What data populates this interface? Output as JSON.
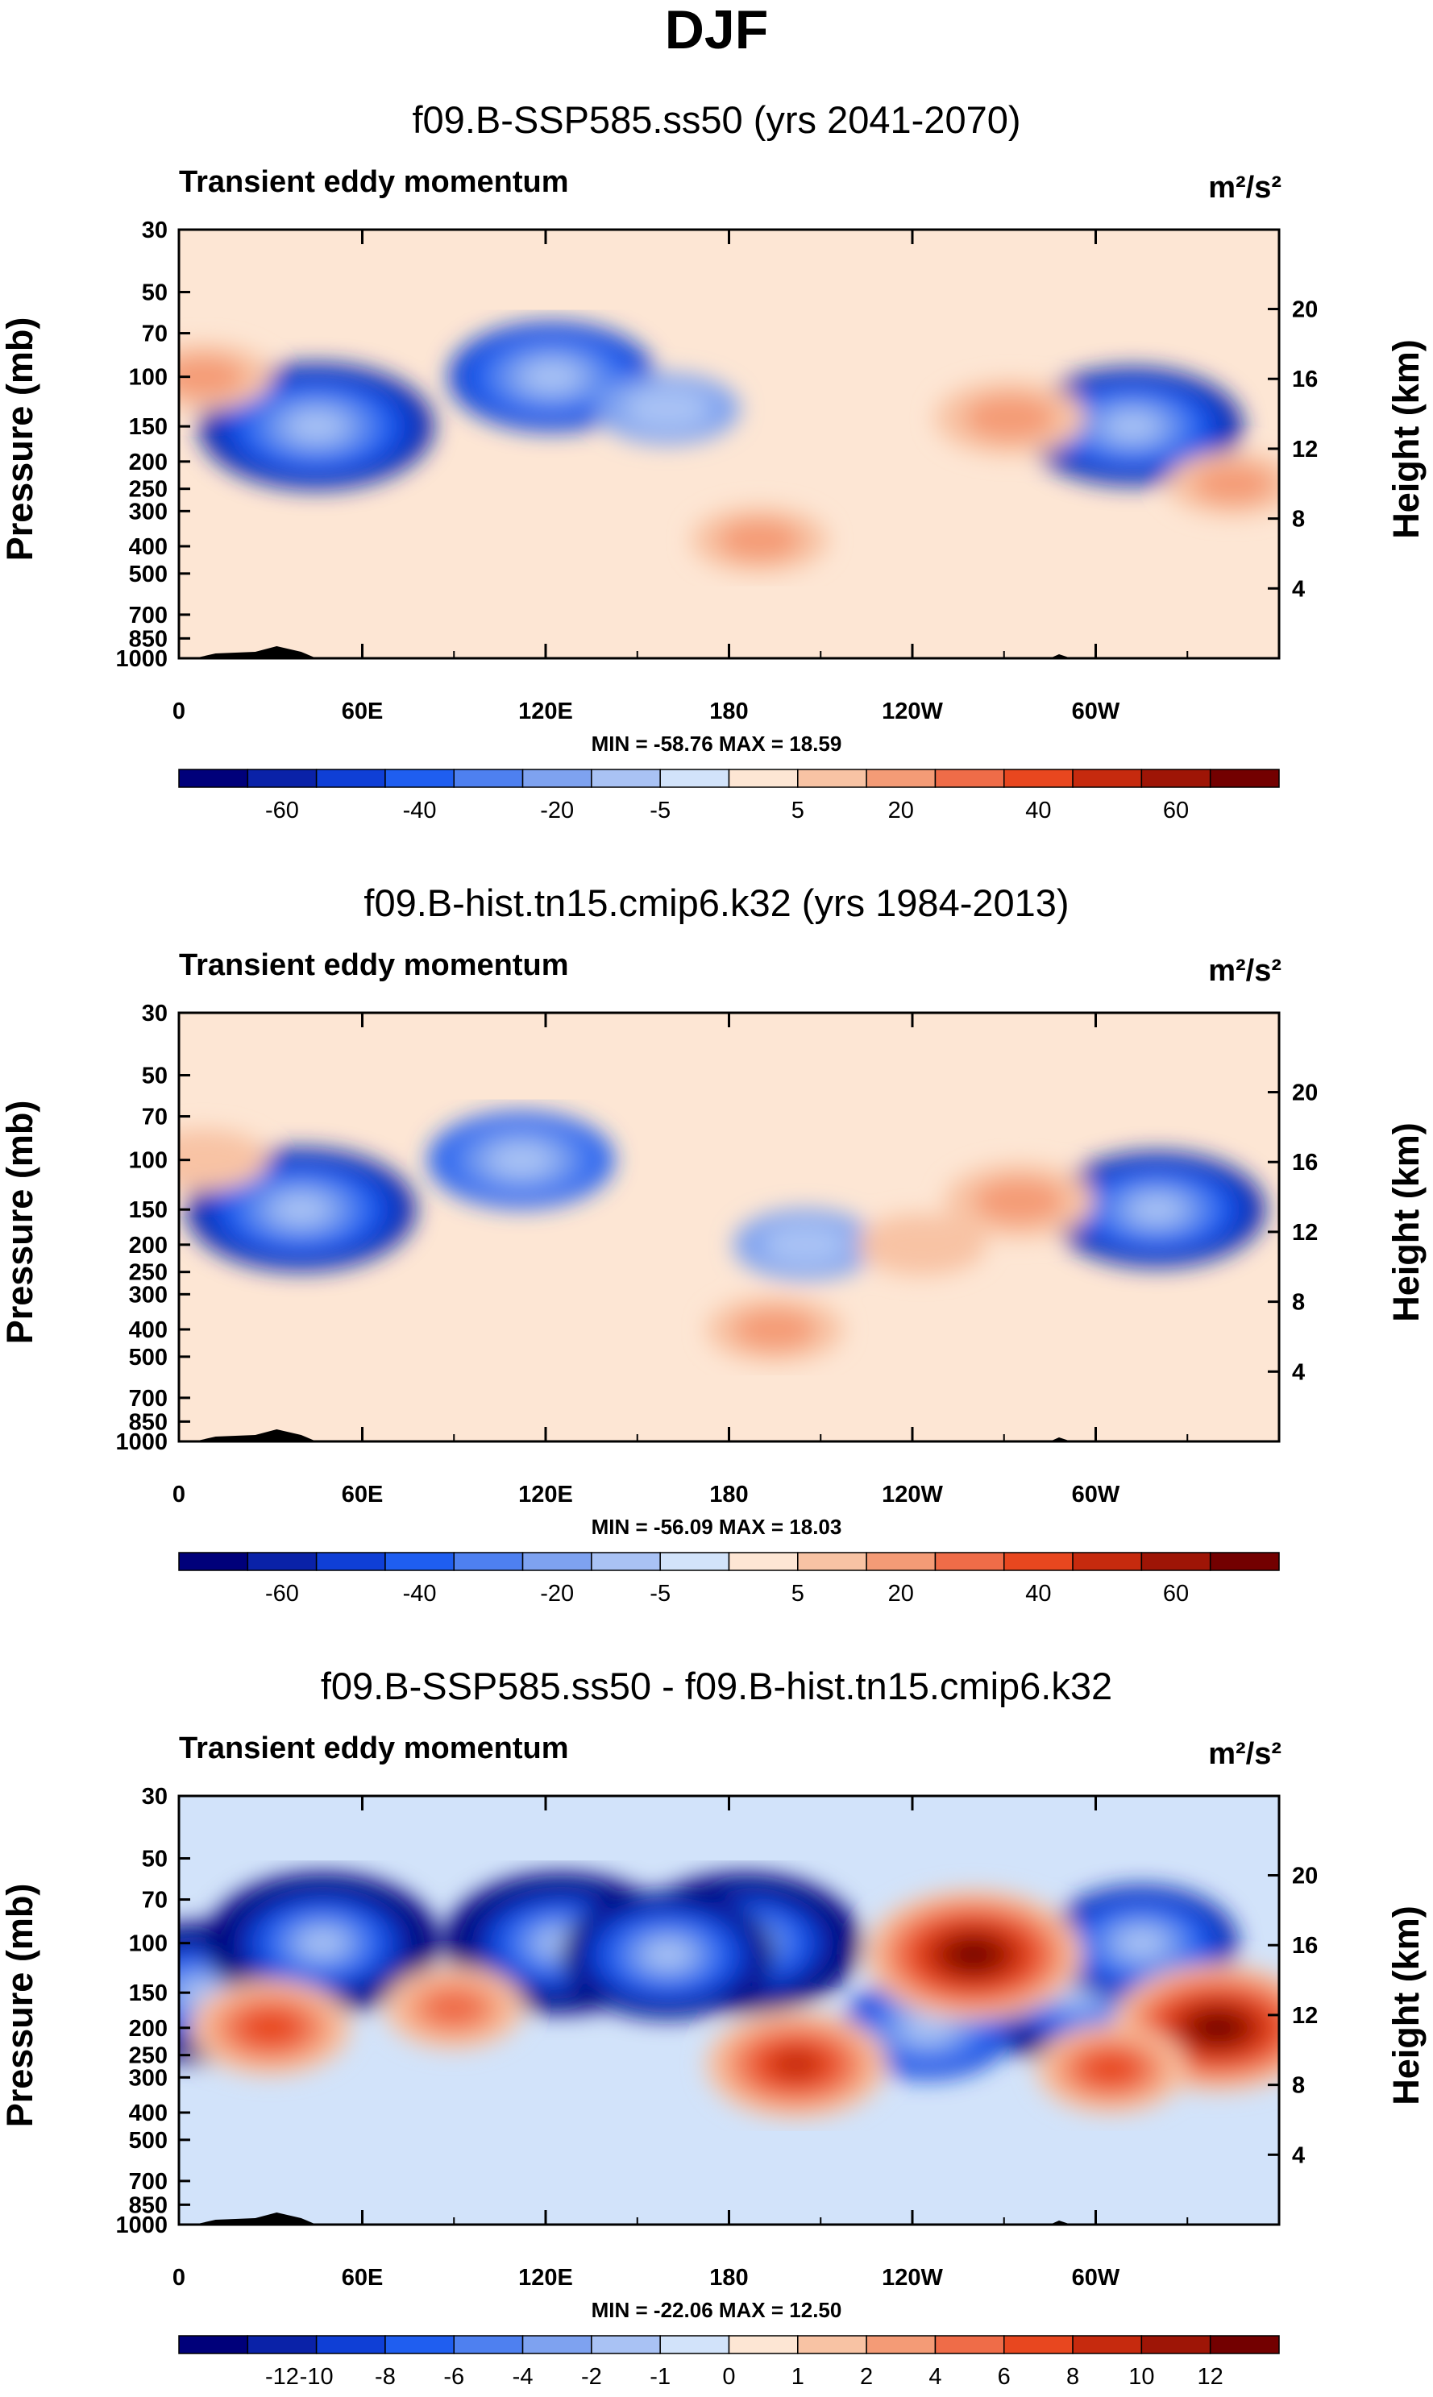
{
  "figure_title": "DJF",
  "colormap": [
    "#00007a",
    "#0a22a8",
    "#0f3fd6",
    "#1f5ef0",
    "#4e80f0",
    "#7ea2f0",
    "#a9c2f4",
    "#d2e3fa",
    "#fde6d4",
    "#f8c3a4",
    "#f49b76",
    "#ef6c48",
    "#e8471f",
    "#c62a0e",
    "#9e1506",
    "#730000"
  ],
  "chart_data": [
    {
      "type": "contour",
      "title": "f09.B-SSP585.ss50 (yrs 2041-2070)",
      "label": "Transient eddy momentum",
      "units": "m²/s²",
      "ylabel": "Pressure (mb)",
      "ylabel_right": "Height (km)",
      "x_ticks": [
        "0",
        "60E",
        "120E",
        "180",
        "120W",
        "60W"
      ],
      "y_ticks": [
        "30",
        "50",
        "70",
        "100",
        "150",
        "200",
        "250",
        "300",
        "400",
        "500",
        "700",
        "850",
        "1000"
      ],
      "height_ticks": [
        "20",
        "16",
        "12",
        "8",
        "4"
      ],
      "stats": "MIN = -58.76  MAX =  18.59",
      "colorbar_labels": [
        "-60",
        "-40",
        "-20",
        "-5",
        "5",
        "20",
        "40",
        "60"
      ],
      "levels": [
        -70,
        -60,
        -50,
        -40,
        -30,
        -20,
        -10,
        -5,
        0,
        5,
        10,
        20,
        30,
        40,
        50,
        60,
        70
      ],
      "features": [
        {
          "lon": 45,
          "p": 150,
          "value": -58.76
        },
        {
          "lon": 122,
          "p": 100,
          "value": -45
        },
        {
          "lon": 160,
          "p": 130,
          "value": -15
        },
        {
          "lon": 312,
          "p": 150,
          "value": -52
        },
        {
          "lon": 190,
          "p": 380,
          "value": 12
        },
        {
          "lon": 272,
          "p": 140,
          "value": 18.59
        },
        {
          "lon": 345,
          "p": 240,
          "value": 10
        },
        {
          "lon": 8,
          "p": 100,
          "value": 12
        }
      ]
    },
    {
      "type": "contour",
      "title": "f09.B-hist.tn15.cmip6.k32 (yrs 1984-2013)",
      "label": "Transient eddy momentum",
      "units": "m²/s²",
      "ylabel": "Pressure (mb)",
      "ylabel_right": "Height (km)",
      "x_ticks": [
        "0",
        "60E",
        "120E",
        "180",
        "120W",
        "60W"
      ],
      "y_ticks": [
        "30",
        "50",
        "70",
        "100",
        "150",
        "200",
        "250",
        "300",
        "400",
        "500",
        "700",
        "850",
        "1000"
      ],
      "height_ticks": [
        "20",
        "16",
        "12",
        "8",
        "4"
      ],
      "stats": "MIN = -56.09  MAX =  18.03",
      "colorbar_labels": [
        "-60",
        "-40",
        "-20",
        "-5",
        "5",
        "20",
        "40",
        "60"
      ],
      "levels": [
        -70,
        -60,
        -50,
        -40,
        -30,
        -20,
        -10,
        -5,
        0,
        5,
        10,
        20,
        30,
        40,
        50,
        60,
        70
      ],
      "features": [
        {
          "lon": 40,
          "p": 150,
          "value": -56.09
        },
        {
          "lon": 112,
          "p": 100,
          "value": -35
        },
        {
          "lon": 205,
          "p": 200,
          "value": -15
        },
        {
          "lon": 320,
          "p": 150,
          "value": -50
        },
        {
          "lon": 195,
          "p": 400,
          "value": 12
        },
        {
          "lon": 275,
          "p": 140,
          "value": 18.03
        },
        {
          "lon": 243,
          "p": 200,
          "value": 8
        },
        {
          "lon": 8,
          "p": 100,
          "value": 8
        }
      ]
    },
    {
      "type": "contour",
      "title": "f09.B-SSP585.ss50 - f09.B-hist.tn15.cmip6.k32",
      "label": "Transient eddy momentum",
      "units": "m²/s²",
      "ylabel": "Pressure (mb)",
      "ylabel_right": "Height (km)",
      "x_ticks": [
        "0",
        "60E",
        "120E",
        "180",
        "120W",
        "60W"
      ],
      "y_ticks": [
        "30",
        "50",
        "70",
        "100",
        "150",
        "200",
        "250",
        "300",
        "400",
        "500",
        "700",
        "850",
        "1000"
      ],
      "height_ticks": [
        "20",
        "16",
        "12",
        "8",
        "4"
      ],
      "stats": "MIN = -22.06  MAX =  12.50",
      "colorbar_labels": [
        "-12",
        "-10",
        "-8",
        "-6",
        "-4",
        "-2",
        "-1",
        "0",
        "1",
        "2",
        "4",
        "6",
        "8",
        "10",
        "12"
      ],
      "levels": [
        -14,
        -12,
        -10,
        -8,
        -6,
        -4,
        -2,
        -1,
        0,
        1,
        2,
        4,
        6,
        8,
        10,
        12,
        14
      ],
      "features": [
        {
          "lon": 8,
          "p": 150,
          "value": -16
        },
        {
          "lon": 47,
          "p": 100,
          "value": -18
        },
        {
          "lon": 125,
          "p": 100,
          "value": -17
        },
        {
          "lon": 185,
          "p": 100,
          "value": -22.06
        },
        {
          "lon": 160,
          "p": 110,
          "value": -12
        },
        {
          "lon": 294,
          "p": 150,
          "value": -16
        },
        {
          "lon": 315,
          "p": 100,
          "value": -10
        },
        {
          "lon": 245,
          "p": 200,
          "value": -8
        },
        {
          "lon": 30,
          "p": 200,
          "value": 7
        },
        {
          "lon": 90,
          "p": 170,
          "value": 5
        },
        {
          "lon": 202,
          "p": 270,
          "value": 9
        },
        {
          "lon": 260,
          "p": 110,
          "value": 12.5
        },
        {
          "lon": 340,
          "p": 200,
          "value": 12
        },
        {
          "lon": 305,
          "p": 280,
          "value": 6
        }
      ]
    }
  ]
}
